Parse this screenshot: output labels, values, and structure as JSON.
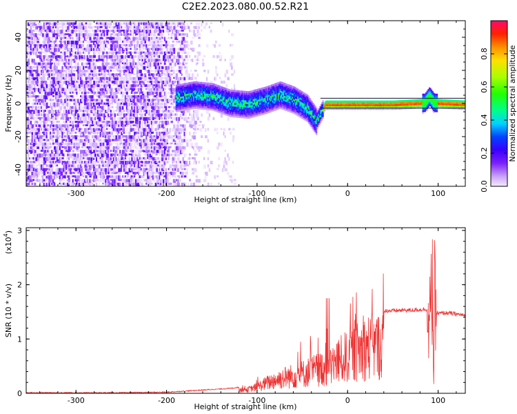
{
  "title": "C2E2.2023.080.00.52.R21",
  "chart_data": [
    {
      "type": "heatmap",
      "xlabel": "Height of straight line (km)",
      "ylabel": "Frequency (Hz)",
      "xlim": [
        -355,
        130
      ],
      "ylim": [
        -50,
        50
      ],
      "xticks": [
        -300,
        -200,
        -100,
        0,
        100
      ],
      "yticks": [
        -40,
        -20,
        0,
        20,
        40
      ],
      "colorbar": {
        "label": "Normalized spectral amplitude",
        "range": [
          0.0,
          1.0
        ],
        "ticks": [
          "0.0",
          "0.2",
          "0.4",
          "0.6",
          "0.8"
        ],
        "colormap": [
          "#f4eaff",
          "#c9a2ff",
          "#7b1fff",
          "#3a00ff",
          "#0044ff",
          "#00d4ff",
          "#00ff88",
          "#22ff00",
          "#aaff00",
          "#ffe000",
          "#ff9000",
          "#ff2000",
          "#ff0a6a"
        ]
      },
      "ridge": {
        "description_points_x": [
          -190,
          -170,
          -150,
          -130,
          -110,
          -90,
          -75,
          -60,
          -45,
          -35,
          -25,
          0,
          50,
          85,
          90,
          95,
          130
        ],
        "description_points_freq": [
          4,
          6,
          5,
          1,
          0,
          3,
          6,
          3,
          -2,
          -10,
          0,
          0,
          0,
          1,
          5,
          1,
          0
        ]
      }
    },
    {
      "type": "line",
      "xlabel": "Height of straight line (km)",
      "ylabel": "SNR (10 * v/v)",
      "yexponent": "(x10",
      "yexponent_power": "4",
      "xlim": [
        -355,
        130
      ],
      "ylim": [
        0,
        3.05
      ],
      "xticks": [
        -300,
        -200,
        -100,
        0,
        100
      ],
      "yticks": [
        0,
        1,
        2,
        3
      ],
      "color": "#ee3333",
      "series": [
        {
          "x": [
            -355,
            -300,
            -250,
            -200,
            -180,
            -150,
            -130,
            -110,
            -100,
            -90,
            -80,
            -70,
            -60,
            -50,
            -40,
            -30,
            -20,
            -15,
            -10,
            -5,
            0,
            10,
            20,
            30,
            40,
            50,
            60,
            70,
            80,
            88,
            90,
            92,
            94,
            95,
            96,
            98,
            100,
            110,
            120,
            130
          ],
          "y": [
            0.0,
            0.0,
            0.0,
            0.01,
            0.03,
            0.06,
            0.08,
            0.12,
            0.2,
            0.32,
            0.42,
            0.5,
            0.55,
            0.62,
            0.7,
            0.78,
            0.85,
            0.95,
            1.05,
            1.1,
            1.18,
            1.32,
            1.45,
            1.5,
            1.52,
            1.52,
            1.53,
            1.53,
            1.54,
            1.55,
            1.8,
            2.3,
            2.9,
            0.05,
            2.7,
            1.5,
            1.47,
            1.48,
            1.46,
            1.43
          ]
        }
      ]
    }
  ]
}
